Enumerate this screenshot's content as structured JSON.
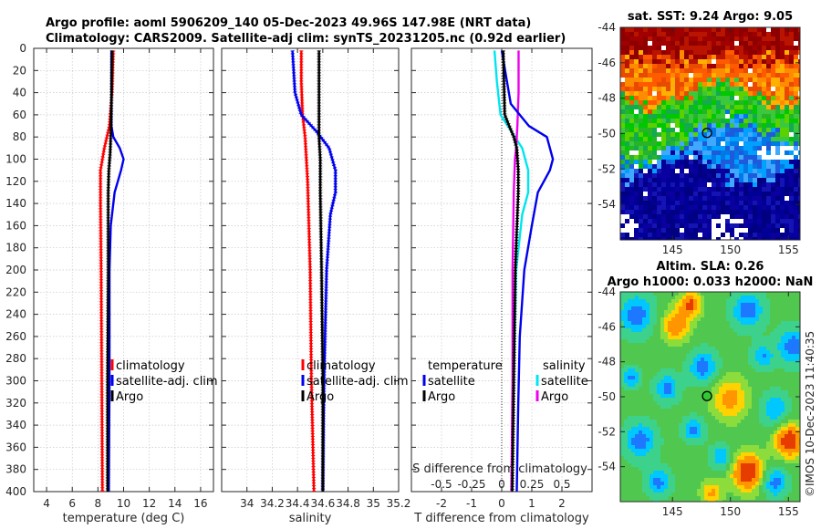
{
  "title": {
    "line1": "Argo profile: aoml 5906209_140 05-Dec-2023 49.96S 147.98E (NRT data)",
    "line2": "Climatology: CARS2009. Satellite-adj clim: synTS_20231205.nc (0.92d earlier)"
  },
  "footer": "©IMOS 10-Dec-2023 11:40:35",
  "colors": {
    "climatology": "#ff0000",
    "satellite": "#0000ee",
    "argo": "#000000",
    "cyan": "#00e5ee",
    "magenta": "#ee00ee"
  },
  "chart_data": [
    {
      "id": "temperature",
      "type": "line",
      "xlabel": "temperature (deg C)",
      "xlim": [
        3,
        17
      ],
      "ylim": [
        0,
        400
      ],
      "xticks": [
        4,
        6,
        8,
        10,
        12,
        14,
        16
      ],
      "xtick_labels": [
        "4",
        "6",
        "8",
        "10",
        "12",
        "14",
        "16"
      ],
      "yticks": [
        0,
        20,
        40,
        60,
        80,
        100,
        120,
        140,
        160,
        180,
        200,
        220,
        240,
        260,
        280,
        300,
        320,
        340,
        360,
        380,
        400
      ],
      "ytick_labels": [
        "0",
        "20",
        "40",
        "60",
        "80",
        "100",
        "120",
        "140",
        "160",
        "180",
        "200",
        "220",
        "240",
        "260",
        "280",
        "300",
        "320",
        "340",
        "360",
        "380",
        "400"
      ],
      "legend": [
        "climatology",
        "satellite-adj. clim",
        "Argo"
      ],
      "series": [
        {
          "name": "climatology",
          "color": "#ff0000",
          "dotted": true,
          "depth": [
            2,
            40,
            70,
            90,
            110,
            140,
            200,
            300,
            400
          ],
          "values": [
            9.2,
            9.1,
            8.9,
            8.5,
            8.2,
            8.2,
            8.25,
            8.3,
            8.35
          ]
        },
        {
          "name": "satellite-adj. clim",
          "color": "#0000ee",
          "depth": [
            2,
            70,
            80,
            90,
            100,
            110,
            130,
            160,
            200,
            300,
            400
          ],
          "values": [
            9.05,
            9.05,
            9.2,
            9.7,
            10.0,
            9.8,
            9.3,
            9.0,
            8.9,
            8.9,
            8.85
          ]
        },
        {
          "name": "Argo",
          "color": "#000000",
          "dotted": true,
          "depth": [
            2,
            50,
            80,
            95,
            110,
            130,
            200,
            300,
            400
          ],
          "values": [
            9.1,
            9.05,
            9.0,
            8.95,
            8.85,
            8.8,
            8.8,
            8.75,
            8.75
          ]
        }
      ]
    },
    {
      "id": "salinity",
      "type": "line",
      "xlabel": "salinity",
      "xlim": [
        33.8,
        35.2
      ],
      "ylim": [
        0,
        400
      ],
      "xticks": [
        34,
        34.2,
        34.4,
        34.6,
        34.8,
        35,
        35.2
      ],
      "xtick_labels": [
        "34",
        "34.2",
        "34.4",
        "34.6",
        "34.8",
        "35",
        "35.2"
      ],
      "legend": [
        "climatology",
        "satellite-adj. clim",
        "Argo"
      ],
      "series": [
        {
          "name": "climatology",
          "color": "#ff0000",
          "depth": [
            2,
            30,
            60,
            80,
            120,
            200,
            300,
            400
          ],
          "values": [
            34.43,
            34.43,
            34.44,
            34.46,
            34.48,
            34.5,
            34.51,
            34.53
          ],
          "dotted": true
        },
        {
          "name": "satellite-adj. clim",
          "color": "#0000ee",
          "depth": [
            2,
            40,
            60,
            75,
            90,
            110,
            130,
            150,
            200,
            300,
            400
          ],
          "values": [
            34.36,
            34.38,
            34.43,
            34.55,
            34.65,
            34.7,
            34.7,
            34.66,
            34.63,
            34.61,
            34.6
          ],
          "dotted": true
        },
        {
          "name": "Argo",
          "color": "#000000",
          "dotted": true,
          "depth": [
            2,
            60,
            80,
            100,
            130,
            200,
            300,
            400
          ],
          "values": [
            34.57,
            34.57,
            34.57,
            34.58,
            34.58,
            34.59,
            34.6,
            34.6
          ]
        }
      ]
    },
    {
      "id": "difference",
      "type": "line",
      "xlabel": "T difference from climatology",
      "xlim": [
        -3,
        3
      ],
      "ylim": [
        0,
        400
      ],
      "xticks": [
        -2,
        -1,
        0,
        1,
        2
      ],
      "xtick_labels": [
        "-2",
        "-1",
        "0",
        "1",
        "2"
      ],
      "s_axis_label": "S difference from climatology",
      "s_xticks": [
        -0.5,
        -0.25,
        0,
        0.25,
        0.5
      ],
      "s_xtick_labels": [
        "-0.5",
        "-0.25",
        "0",
        "0.25",
        "0.5"
      ],
      "legend_left_title": "temperature",
      "legend_left": [
        "satellite",
        "Argo"
      ],
      "legend_right_title": "salinity",
      "legend_right": [
        "satellite",
        "Argo"
      ],
      "series": [
        {
          "name": "temperature satellite",
          "color": "#0000ee",
          "depth": [
            2,
            50,
            70,
            80,
            90,
            100,
            110,
            130,
            160,
            200,
            260,
            320,
            400
          ],
          "values": [
            0.0,
            0.3,
            0.9,
            1.5,
            1.6,
            1.7,
            1.6,
            1.2,
            1.0,
            0.75,
            0.6,
            0.55,
            0.5
          ]
        },
        {
          "name": "temperature Argo",
          "color": "#000000",
          "dotted": true,
          "depth": [
            2,
            60,
            80,
            90,
            110,
            130,
            200,
            300,
            400
          ],
          "values": [
            0.05,
            0.1,
            0.4,
            0.5,
            0.55,
            0.55,
            0.45,
            0.4,
            0.35
          ]
        },
        {
          "name": "salinity satellite",
          "color": "#00e5ee",
          "depth": [
            2,
            30,
            60,
            75,
            90,
            110,
            130,
            150,
            200,
            300,
            400
          ],
          "values": [
            -0.06,
            -0.04,
            -0.01,
            0.08,
            0.17,
            0.22,
            0.22,
            0.17,
            0.12,
            0.1,
            0.08
          ]
        },
        {
          "name": "salinity Argo",
          "color": "#ee00ee",
          "depth": [
            2,
            40,
            70,
            90,
            100,
            130,
            200,
            300,
            400
          ],
          "values": [
            0.14,
            0.14,
            0.13,
            0.12,
            0.11,
            0.1,
            0.09,
            0.09,
            0.08
          ]
        }
      ]
    },
    {
      "id": "sst_map",
      "type": "heatmap",
      "title": "sat. SST: 9.24 Argo: 9.05",
      "xlim": [
        140.5,
        156
      ],
      "ylim": [
        -56,
        -44
      ],
      "xticks": [
        145,
        150,
        155
      ],
      "xtick_labels": [
        "145",
        "150",
        "155"
      ],
      "yticks": [
        -44,
        -46,
        -48,
        -50,
        -52,
        -54
      ],
      "ytick_labels": [
        "-44",
        "-46",
        "-48",
        "-50",
        "-52",
        "-54"
      ],
      "marker": {
        "lon": 147.98,
        "lat": -49.96
      }
    },
    {
      "id": "sla_map",
      "type": "heatmap",
      "title_line1": "Altim. SLA: 0.26",
      "title_line2": "Argo h1000: 0.033 h2000: NaN",
      "xlim": [
        140.5,
        156
      ],
      "ylim": [
        -56,
        -44
      ],
      "xticks": [
        145,
        150,
        155
      ],
      "xtick_labels": [
        "145",
        "150",
        "155"
      ],
      "yticks": [
        -44,
        -46,
        -48,
        -50,
        -52,
        -54
      ],
      "ytick_labels": [
        "-44",
        "-46",
        "-48",
        "-50",
        "-52",
        "-54"
      ],
      "marker": {
        "lon": 147.98,
        "lat": -49.96
      }
    }
  ]
}
